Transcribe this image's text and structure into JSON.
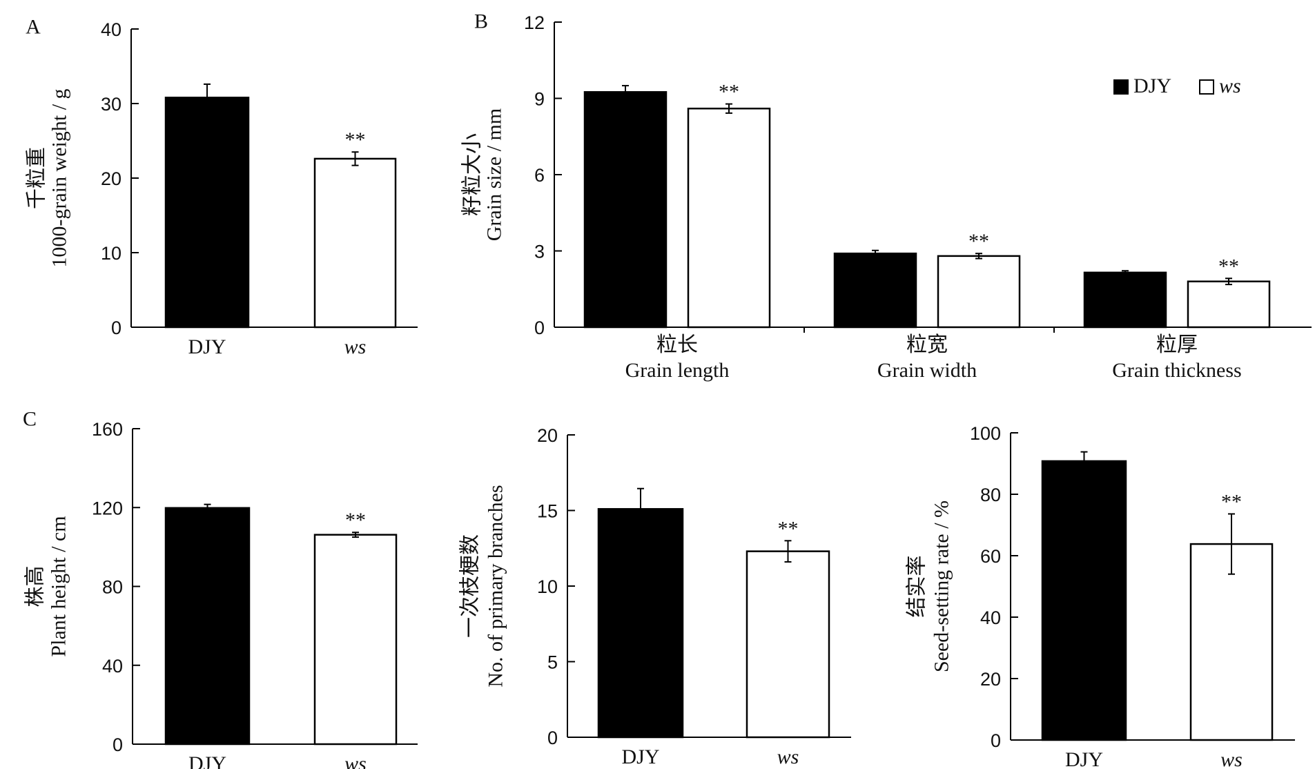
{
  "chart_data": [
    {
      "panel": "A",
      "type": "bar",
      "categories": [
        "DJY",
        "ws"
      ],
      "values": [
        30.8,
        22.6
      ],
      "errors": [
        1.8,
        0.9
      ],
      "significance": [
        "",
        "**"
      ],
      "ylabel_zh": "千粒重",
      "ylabel_en": "1000-grain weight / g",
      "ylim": [
        0,
        40
      ],
      "yticks": [
        0,
        10,
        20,
        30,
        40
      ],
      "colors": [
        "#000000",
        "#ffffff"
      ]
    },
    {
      "panel": "B",
      "type": "bar",
      "categories": [
        {
          "zh": "粒长",
          "en": "Grain length"
        },
        {
          "zh": "粒宽",
          "en": "Grain width"
        },
        {
          "zh": "粒厚",
          "en": "Grain thickness"
        }
      ],
      "series": [
        {
          "name": "DJY",
          "values": [
            9.25,
            2.9,
            2.15
          ],
          "errors": [
            0.25,
            0.12,
            0.07
          ],
          "significance": [
            "",
            "",
            ""
          ],
          "color": "#000000"
        },
        {
          "name": "ws",
          "values": [
            8.6,
            2.8,
            1.8
          ],
          "errors": [
            0.18,
            0.1,
            0.12
          ],
          "significance": [
            "**",
            "**",
            "**"
          ],
          "color": "#ffffff"
        }
      ],
      "ylabel_zh": "籽粒大小",
      "ylabel_en": "Grain size / mm",
      "ylim": [
        0,
        12
      ],
      "yticks": [
        0,
        3,
        6,
        9,
        12
      ],
      "legend_position": "top-right"
    },
    {
      "panel": "C",
      "type": "bar",
      "categories": [
        "DJY",
        "ws"
      ],
      "values": [
        119.8,
        106.2
      ],
      "errors": [
        1.8,
        1.2
      ],
      "significance": [
        "",
        "**"
      ],
      "ylabel_zh": "株高",
      "ylabel_en": "Plant height / cm",
      "ylim": [
        0,
        160
      ],
      "yticks": [
        0,
        40,
        80,
        120,
        160
      ],
      "colors": [
        "#000000",
        "#ffffff"
      ]
    },
    {
      "panel": "",
      "type": "bar",
      "categories": [
        "DJY",
        "ws"
      ],
      "values": [
        15.1,
        12.3
      ],
      "errors": [
        1.35,
        0.7
      ],
      "significance": [
        "",
        "**"
      ],
      "ylabel_zh": "一次枝梗数",
      "ylabel_en": "No. of primary branches",
      "ylim": [
        0,
        20
      ],
      "yticks": [
        0,
        5,
        10,
        15,
        20
      ],
      "colors": [
        "#000000",
        "#ffffff"
      ]
    },
    {
      "panel": "",
      "type": "bar",
      "categories": [
        "DJY",
        "ws"
      ],
      "values": [
        90.8,
        63.8
      ],
      "errors": [
        3.0,
        9.8
      ],
      "significance": [
        "",
        "**"
      ],
      "ylabel_zh": "结实率",
      "ylabel_en": "Seed-setting rate / %",
      "ylim": [
        0,
        100
      ],
      "yticks": [
        0,
        20,
        40,
        60,
        80,
        100
      ],
      "colors": [
        "#000000",
        "#ffffff"
      ]
    }
  ]
}
